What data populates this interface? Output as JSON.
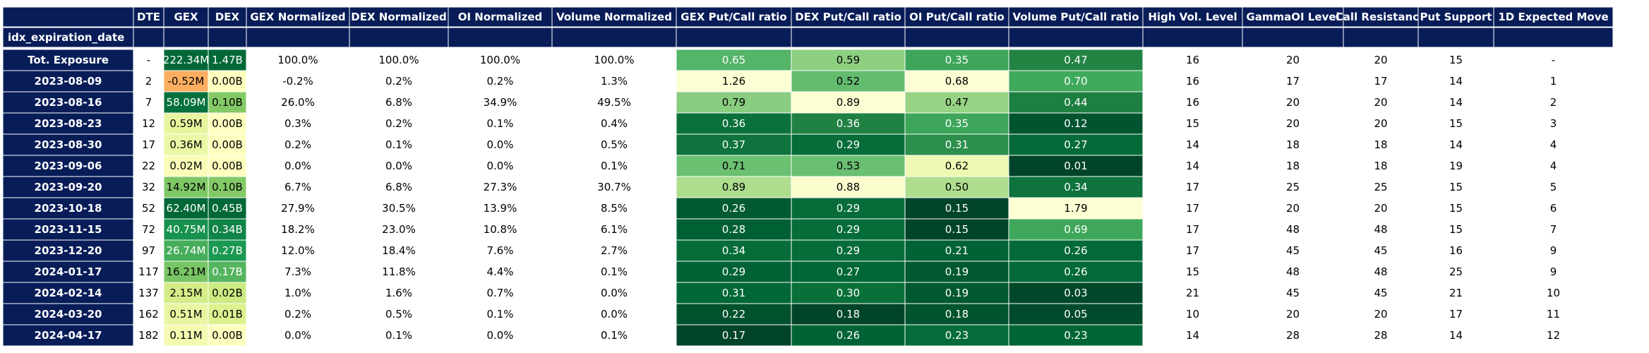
{
  "chart_data": {
    "type": "table",
    "index_header": "idx_expiration_date",
    "columns": [
      "DTE",
      "GEX",
      "DEX",
      "GEX Normalized",
      "DEX Normalized",
      "OI Normalized",
      "Volume Normalized",
      "GEX Put/Call ratio",
      "DEX Put/Call ratio",
      "OI Put/Call ratio",
      "Volume Put/Call ratio",
      "High Vol. Level",
      "GammaOI Level",
      "Call Resistance",
      "Put Support",
      "1D Expected Move"
    ],
    "rows": [
      {
        "label": "Tot. Exposure",
        "cells": [
          "-",
          "222.34M",
          "1.47B",
          "100.0%",
          "100.0%",
          "100.0%",
          "100.0%",
          "0.65",
          "0.59",
          "0.35",
          "0.47",
          "16",
          "20",
          "20",
          "15",
          "-"
        ]
      },
      {
        "label": "2023-08-09",
        "cells": [
          "2",
          "-0.52M",
          "0.00B",
          "-0.2%",
          "0.2%",
          "0.2%",
          "1.3%",
          "1.26",
          "0.52",
          "0.68",
          "0.70",
          "16",
          "17",
          "17",
          "14",
          "1"
        ]
      },
      {
        "label": "2023-08-16",
        "cells": [
          "7",
          "58.09M",
          "0.10B",
          "26.0%",
          "6.8%",
          "34.9%",
          "49.5%",
          "0.79",
          "0.89",
          "0.47",
          "0.44",
          "16",
          "20",
          "20",
          "14",
          "2"
        ]
      },
      {
        "label": "2023-08-23",
        "cells": [
          "12",
          "0.59M",
          "0.00B",
          "0.3%",
          "0.2%",
          "0.1%",
          "0.4%",
          "0.36",
          "0.36",
          "0.35",
          "0.12",
          "15",
          "20",
          "20",
          "15",
          "3"
        ]
      },
      {
        "label": "2023-08-30",
        "cells": [
          "17",
          "0.36M",
          "0.00B",
          "0.2%",
          "0.1%",
          "0.0%",
          "0.5%",
          "0.37",
          "0.29",
          "0.31",
          "0.27",
          "14",
          "18",
          "18",
          "14",
          "4"
        ]
      },
      {
        "label": "2023-09-06",
        "cells": [
          "22",
          "0.02M",
          "0.00B",
          "0.0%",
          "0.0%",
          "0.0%",
          "0.1%",
          "0.71",
          "0.53",
          "0.62",
          "0.01",
          "14",
          "18",
          "18",
          "19",
          "4"
        ]
      },
      {
        "label": "2023-09-20",
        "cells": [
          "32",
          "14.92M",
          "0.10B",
          "6.7%",
          "6.8%",
          "27.3%",
          "30.7%",
          "0.89",
          "0.88",
          "0.50",
          "0.34",
          "17",
          "25",
          "25",
          "15",
          "5"
        ]
      },
      {
        "label": "2023-10-18",
        "cells": [
          "52",
          "62.40M",
          "0.45B",
          "27.9%",
          "30.5%",
          "13.9%",
          "8.5%",
          "0.26",
          "0.29",
          "0.15",
          "1.79",
          "17",
          "20",
          "20",
          "15",
          "6"
        ]
      },
      {
        "label": "2023-11-15",
        "cells": [
          "72",
          "40.75M",
          "0.34B",
          "18.2%",
          "23.0%",
          "10.8%",
          "6.1%",
          "0.28",
          "0.29",
          "0.15",
          "0.69",
          "17",
          "48",
          "48",
          "15",
          "7"
        ]
      },
      {
        "label": "2023-12-20",
        "cells": [
          "97",
          "26.74M",
          "0.27B",
          "12.0%",
          "18.4%",
          "7.6%",
          "2.7%",
          "0.34",
          "0.29",
          "0.21",
          "0.26",
          "17",
          "45",
          "45",
          "16",
          "9"
        ]
      },
      {
        "label": "2024-01-17",
        "cells": [
          "117",
          "16.21M",
          "0.17B",
          "7.3%",
          "11.8%",
          "4.4%",
          "0.1%",
          "0.29",
          "0.27",
          "0.19",
          "0.26",
          "15",
          "48",
          "48",
          "25",
          "9"
        ]
      },
      {
        "label": "2024-02-14",
        "cells": [
          "137",
          "2.15M",
          "0.02B",
          "1.0%",
          "1.6%",
          "0.7%",
          "0.0%",
          "0.31",
          "0.30",
          "0.19",
          "0.03",
          "21",
          "45",
          "45",
          "21",
          "10"
        ]
      },
      {
        "label": "2024-03-20",
        "cells": [
          "162",
          "0.51M",
          "0.01B",
          "0.2%",
          "0.5%",
          "0.1%",
          "0.0%",
          "0.22",
          "0.18",
          "0.18",
          "0.05",
          "10",
          "20",
          "20",
          "17",
          "11"
        ]
      },
      {
        "label": "2024-04-17",
        "cells": [
          "182",
          "0.11M",
          "0.00B",
          "0.0%",
          "0.1%",
          "0.0%",
          "0.1%",
          "0.17",
          "0.26",
          "0.23",
          "0.23",
          "14",
          "28",
          "28",
          "14",
          "12"
        ]
      }
    ],
    "colors": {
      "header_bg": "#081d58",
      "header_text": "#ffffff",
      "grid_line": "#ffffff",
      "gex_colormap": [
        "#fdae61",
        "#ffffbf",
        "#d9ef8b",
        "#a6d96a",
        "#66bd63",
        "#1a9850",
        "#006837"
      ],
      "ratio_colormap": [
        "#ffffe5",
        "#f7fcb9",
        "#d9f0a3",
        "#addd8e",
        "#78c679",
        "#41ab5d",
        "#238443",
        "#006837",
        "#004529"
      ]
    }
  }
}
